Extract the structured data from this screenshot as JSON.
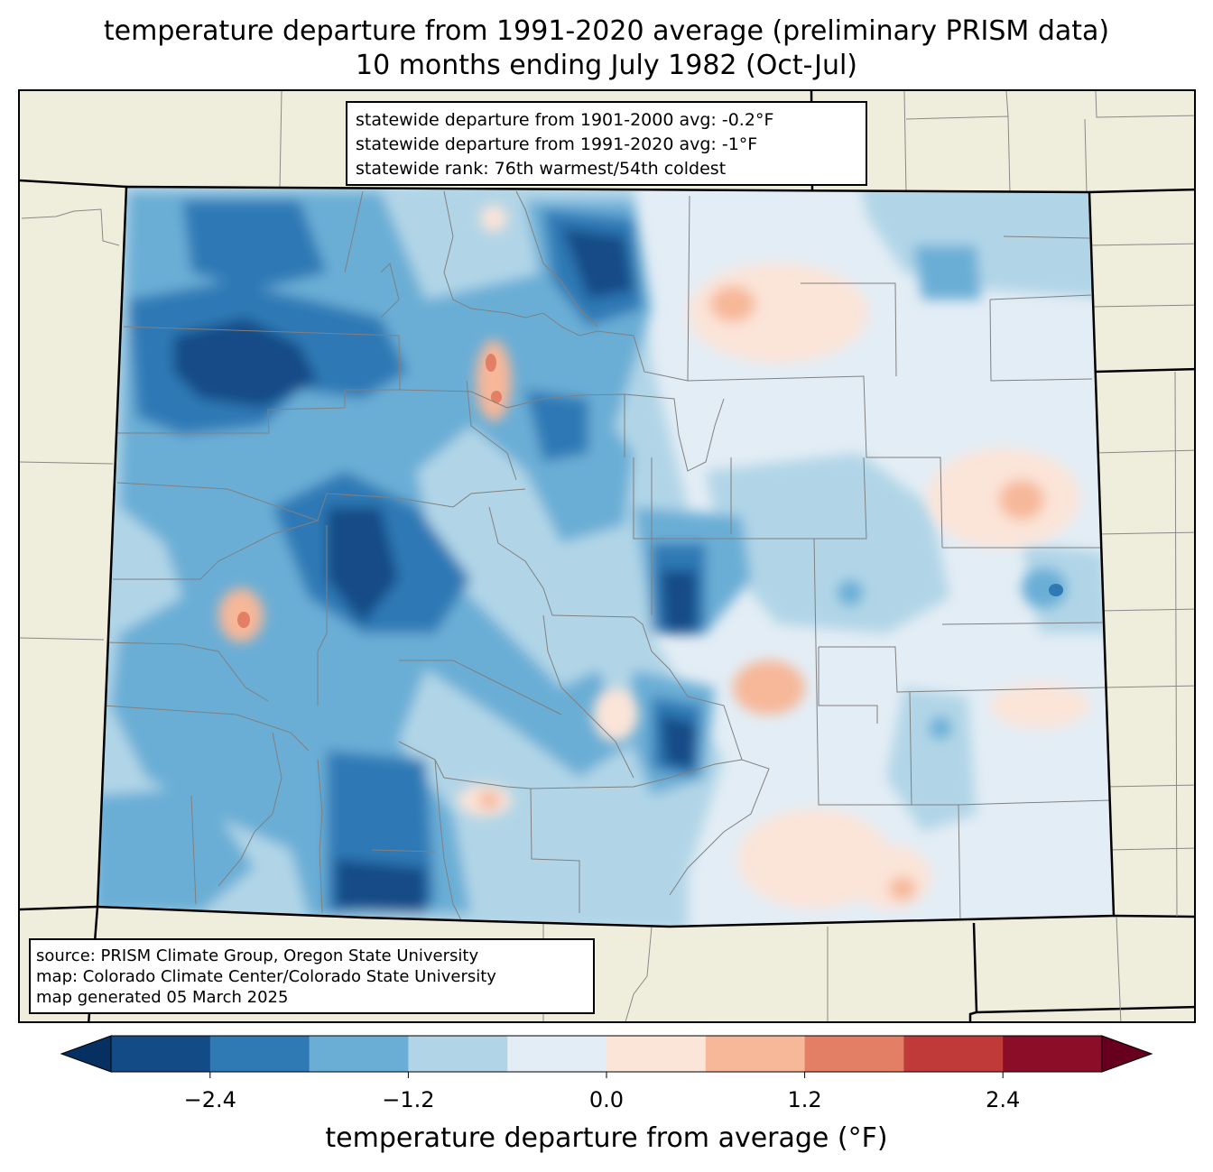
{
  "title_line1": "temperature departure from 1991-2020 average (preliminary PRISM data)",
  "title_line2": "10 months ending July 1982 (Oct-Jul)",
  "stats": [
    "statewide departure from 1901-2000 avg: -0.2°F",
    "statewide departure from 1991-2020 avg: -1°F",
    "statewide rank: 76th warmest/54th coldest"
  ],
  "source": [
    "source: PRISM Climate Group, Oregon State University",
    "map: Colorado Climate Center/Colorado State University",
    "map generated 05 March 2025"
  ],
  "colorbar": {
    "label": "temperature departure from average (°F)",
    "bounds": [
      -3.0,
      -2.4,
      -1.8,
      -1.2,
      -0.6,
      0.0,
      0.6,
      1.2,
      1.8,
      2.4,
      3.0
    ],
    "ticks": [
      -2.4,
      -1.2,
      0.0,
      1.2,
      2.4
    ],
    "tick_labels": [
      "−2.4",
      "−1.2",
      "0.0",
      "1.2",
      "2.4"
    ],
    "colors": [
      "#134b87",
      "#2f79b5",
      "#6aaed6",
      "#b1d5e7",
      "#e3edf5",
      "#fbe4d8",
      "#f7b799",
      "#e27f65",
      "#c03a3a",
      "#8b0d27"
    ],
    "under_color": "#053061",
    "over_color": "#67001f",
    "extend": "both"
  },
  "colors": {
    "background_land": "#efeedd",
    "state_border": "#000000",
    "county_border": "#808080"
  }
}
